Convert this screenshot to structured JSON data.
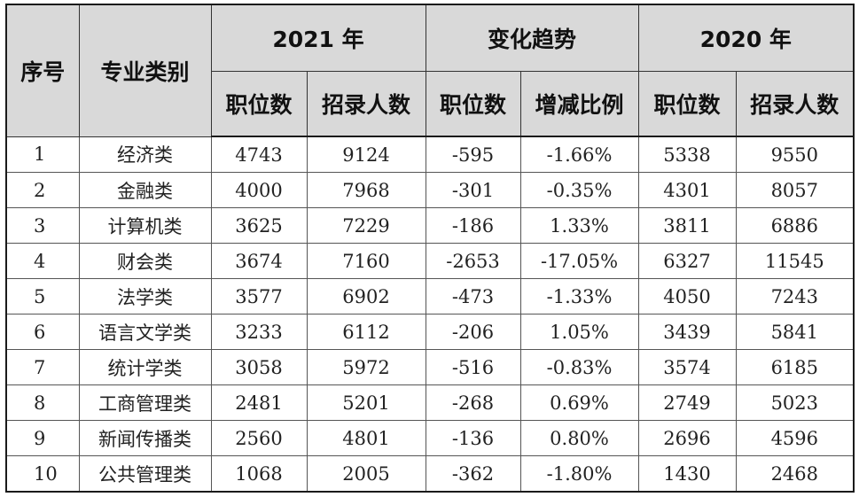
{
  "table": {
    "headers": {
      "index": "序号",
      "category": "专业类别",
      "group_2021": "2021 年",
      "group_change": "变化趋势",
      "group_2020": "2020 年",
      "sub_positions_2021": "职位数",
      "sub_recruits_2021": "招录人数",
      "sub_positions_change": "职位数",
      "sub_ratio_change": "增减比例",
      "sub_positions_2020": "职位数",
      "sub_recruits_2020": "招录人数"
    },
    "rows": [
      {
        "index": "1",
        "category": "经济类",
        "pos2021": "4743",
        "rec2021": "9124",
        "poschg": "-595",
        "ratio": "-1.66%",
        "pos2020": "5338",
        "rec2020": "9550"
      },
      {
        "index": "2",
        "category": "金融类",
        "pos2021": "4000",
        "rec2021": "7968",
        "poschg": "-301",
        "ratio": "-0.35%",
        "pos2020": "4301",
        "rec2020": "8057"
      },
      {
        "index": "3",
        "category": "计算机类",
        "pos2021": "3625",
        "rec2021": "7229",
        "poschg": "-186",
        "ratio": "1.33%",
        "pos2020": "3811",
        "rec2020": "6886"
      },
      {
        "index": "4",
        "category": "财会类",
        "pos2021": "3674",
        "rec2021": "7160",
        "poschg": "-2653",
        "ratio": "-17.05%",
        "pos2020": "6327",
        "rec2020": "11545"
      },
      {
        "index": "5",
        "category": "法学类",
        "pos2021": "3577",
        "rec2021": "6902",
        "poschg": "-473",
        "ratio": "-1.33%",
        "pos2020": "4050",
        "rec2020": "7243"
      },
      {
        "index": "6",
        "category": "语言文学类",
        "pos2021": "3233",
        "rec2021": "6112",
        "poschg": "-206",
        "ratio": "1.05%",
        "pos2020": "3439",
        "rec2020": "5841"
      },
      {
        "index": "7",
        "category": "统计学类",
        "pos2021": "3058",
        "rec2021": "5972",
        "poschg": "-516",
        "ratio": "-0.83%",
        "pos2020": "3574",
        "rec2020": "6185"
      },
      {
        "index": "8",
        "category": "工商管理类",
        "pos2021": "2481",
        "rec2021": "5201",
        "poschg": "-268",
        "ratio": "0.69%",
        "pos2020": "2749",
        "rec2020": "5023"
      },
      {
        "index": "9",
        "category": "新闻传播类",
        "pos2021": "2560",
        "rec2021": "4801",
        "poschg": "-136",
        "ratio": "0.80%",
        "pos2020": "2696",
        "rec2020": "4596"
      },
      {
        "index": "10",
        "category": "公共管理类",
        "pos2021": "1068",
        "rec2021": "2005",
        "poschg": "-362",
        "ratio": "-1.80%",
        "pos2020": "1430",
        "rec2020": "2468"
      }
    ]
  }
}
